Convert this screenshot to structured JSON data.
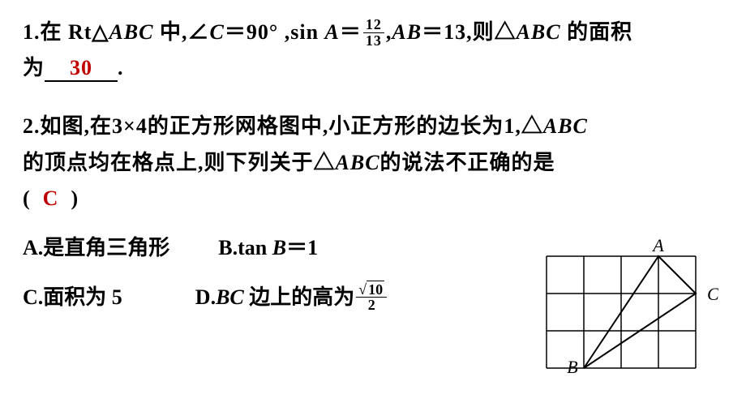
{
  "q1": {
    "prefix": "1.",
    "t1": "在 Rt△",
    "abc": "ABC",
    "t2": " 中,∠",
    "C": "C",
    "t3": "＝90°  ,sin ",
    "A": "A",
    "eq": "＝",
    "frac_num": "12",
    "frac_den": "13",
    "comma": ",",
    "AB": "AB",
    "t4": "＝13,则△",
    "abc2": "ABC",
    "t5": " 的面积",
    "line2a": "为",
    "answer": "30",
    "period": "."
  },
  "q2": {
    "prefix": "2.",
    "t1": "如图,在3×4的正方形网格图中,小正方形的边长为1,△",
    "abc": "ABC",
    "t2": "的顶点均在格点上,则下列关于△",
    "abc2": "ABC",
    "t3": "的说法不正确的是",
    "paren_open": "(",
    "answer": "C",
    "paren_close": ")",
    "optA_label": "A.",
    "optA_text": "是直角三角形",
    "optB_label": "B.",
    "optB_text1": "tan ",
    "optB_B": "B",
    "optB_text2": "＝1",
    "optC_label": "C.",
    "optC_text": "面积为 5",
    "optD_label": "D.",
    "optD_BC": "BC",
    "optD_text1": " 边上的高为",
    "optD_num_rad": "10",
    "optD_den": "2"
  },
  "figure": {
    "cols": 4,
    "rows": 3,
    "cell": 46,
    "grid_color": "#000000",
    "bg": "#ffffff",
    "A": {
      "col": 3,
      "row": 0,
      "label": "A"
    },
    "B": {
      "col": 1,
      "row": 3,
      "label": "B"
    },
    "C": {
      "col": 4,
      "row": 1,
      "label": "C"
    },
    "label_fontsize": 22,
    "stroke_width": 1.5,
    "tri_stroke_width": 2
  }
}
